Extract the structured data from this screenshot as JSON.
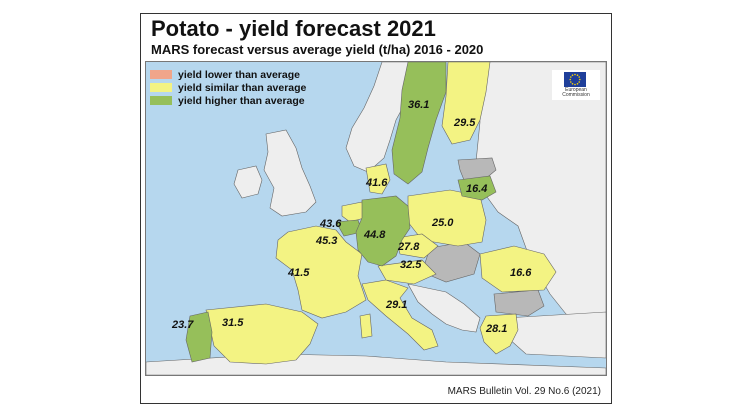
{
  "title": "Potato - yield forecast 2021",
  "subtitle": "MARS forecast versus average yield (t/ha) 2016 - 2020",
  "legend": [
    {
      "label": "yield lower than average",
      "color": "#f0a58a"
    },
    {
      "label": "yield similar than average",
      "color": "#f3f383"
    },
    {
      "label": "yield higher than average",
      "color": "#96bf5a"
    }
  ],
  "colors": {
    "sea": "#b6d7ee",
    "non_eu_land": "#eeeeee",
    "no_data": "#b8b8b8",
    "border": "#666666"
  },
  "logo": {
    "icon": "eu-flag-icon",
    "text": "European Commission"
  },
  "values": [
    {
      "country": "Sweden",
      "value": "36.1",
      "category": "higher"
    },
    {
      "country": "Finland",
      "value": "29.5",
      "category": "similar"
    },
    {
      "country": "Denmark",
      "value": "41.6",
      "category": "similar"
    },
    {
      "country": "Lithuania",
      "value": "16.4",
      "category": "higher"
    },
    {
      "country": "Netherlands",
      "value": "43.6",
      "category": "similar"
    },
    {
      "country": "Belgium",
      "value": "45.3",
      "category": "higher"
    },
    {
      "country": "Germany",
      "value": "44.8",
      "category": "higher"
    },
    {
      "country": "Poland",
      "value": "25.0",
      "category": "similar"
    },
    {
      "country": "Czechia",
      "value": "27.8",
      "category": "similar"
    },
    {
      "country": "France",
      "value": "41.5",
      "category": "similar"
    },
    {
      "country": "Austria",
      "value": "32.5",
      "category": "similar"
    },
    {
      "country": "Romania",
      "value": "16.6",
      "category": "similar"
    },
    {
      "country": "Italy",
      "value": "29.1",
      "category": "similar"
    },
    {
      "country": "Portugal",
      "value": "23.7",
      "category": "higher"
    },
    {
      "country": "Spain",
      "value": "31.5",
      "category": "similar"
    },
    {
      "country": "Greece",
      "value": "28.1",
      "category": "similar"
    }
  ],
  "footer": "MARS Bulletin Vol. 29 No.6 (2021)"
}
